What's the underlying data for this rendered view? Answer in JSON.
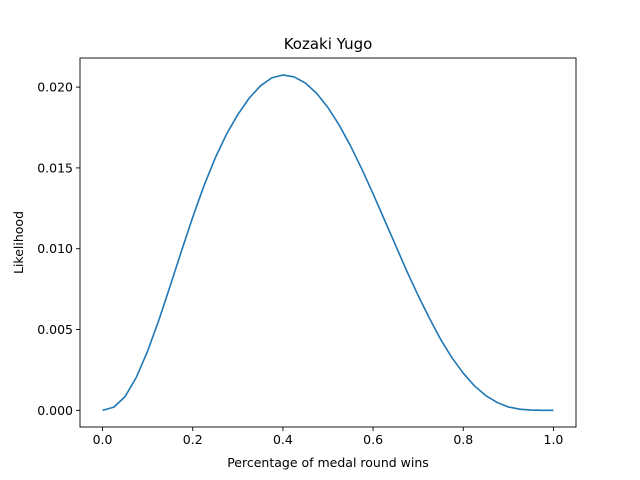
{
  "chart_data": {
    "type": "line",
    "title": "Kozaki Yugo",
    "xlabel": "Percentage of medal round wins",
    "ylabel": "Likelihood",
    "xlim": [
      -0.05,
      1.05
    ],
    "ylim": [
      -0.00103,
      0.0218
    ],
    "xticks": [
      0.0,
      0.2,
      0.4,
      0.6,
      0.8,
      1.0
    ],
    "xtick_labels": [
      "0.0",
      "0.2",
      "0.4",
      "0.6",
      "0.8",
      "1.0"
    ],
    "yticks": [
      0.0,
      0.005,
      0.01,
      0.015,
      0.02
    ],
    "ytick_labels": [
      "0.000",
      "0.005",
      "0.010",
      "0.015",
      "0.020"
    ],
    "grid": false,
    "series": [
      {
        "color": "#1f77b4",
        "x": [
          0.0,
          0.025,
          0.05,
          0.075,
          0.1,
          0.125,
          0.15,
          0.175,
          0.2,
          0.225,
          0.25,
          0.275,
          0.3,
          0.325,
          0.35,
          0.375,
          0.4,
          0.425,
          0.45,
          0.475,
          0.5,
          0.525,
          0.55,
          0.575,
          0.6,
          0.625,
          0.65,
          0.675,
          0.7,
          0.725,
          0.75,
          0.775,
          0.8,
          0.825,
          0.85,
          0.875,
          0.9,
          0.925,
          0.95,
          0.975,
          1.0
        ],
        "y": [
          0.0,
          0.0002,
          0.00085,
          0.00205,
          0.00367,
          0.00559,
          0.0077,
          0.00985,
          0.01195,
          0.0139,
          0.01562,
          0.01709,
          0.0183,
          0.01931,
          0.02007,
          0.02057,
          0.02075,
          0.02063,
          0.02025,
          0.01961,
          0.01873,
          0.01764,
          0.01636,
          0.01493,
          0.0134,
          0.0118,
          0.0102,
          0.0086,
          0.0071,
          0.0057,
          0.00438,
          0.00325,
          0.0023,
          0.00151,
          0.00091,
          0.00049,
          0.00021,
          7e-05,
          2e-05,
          0.0,
          0.0
        ]
      }
    ]
  }
}
